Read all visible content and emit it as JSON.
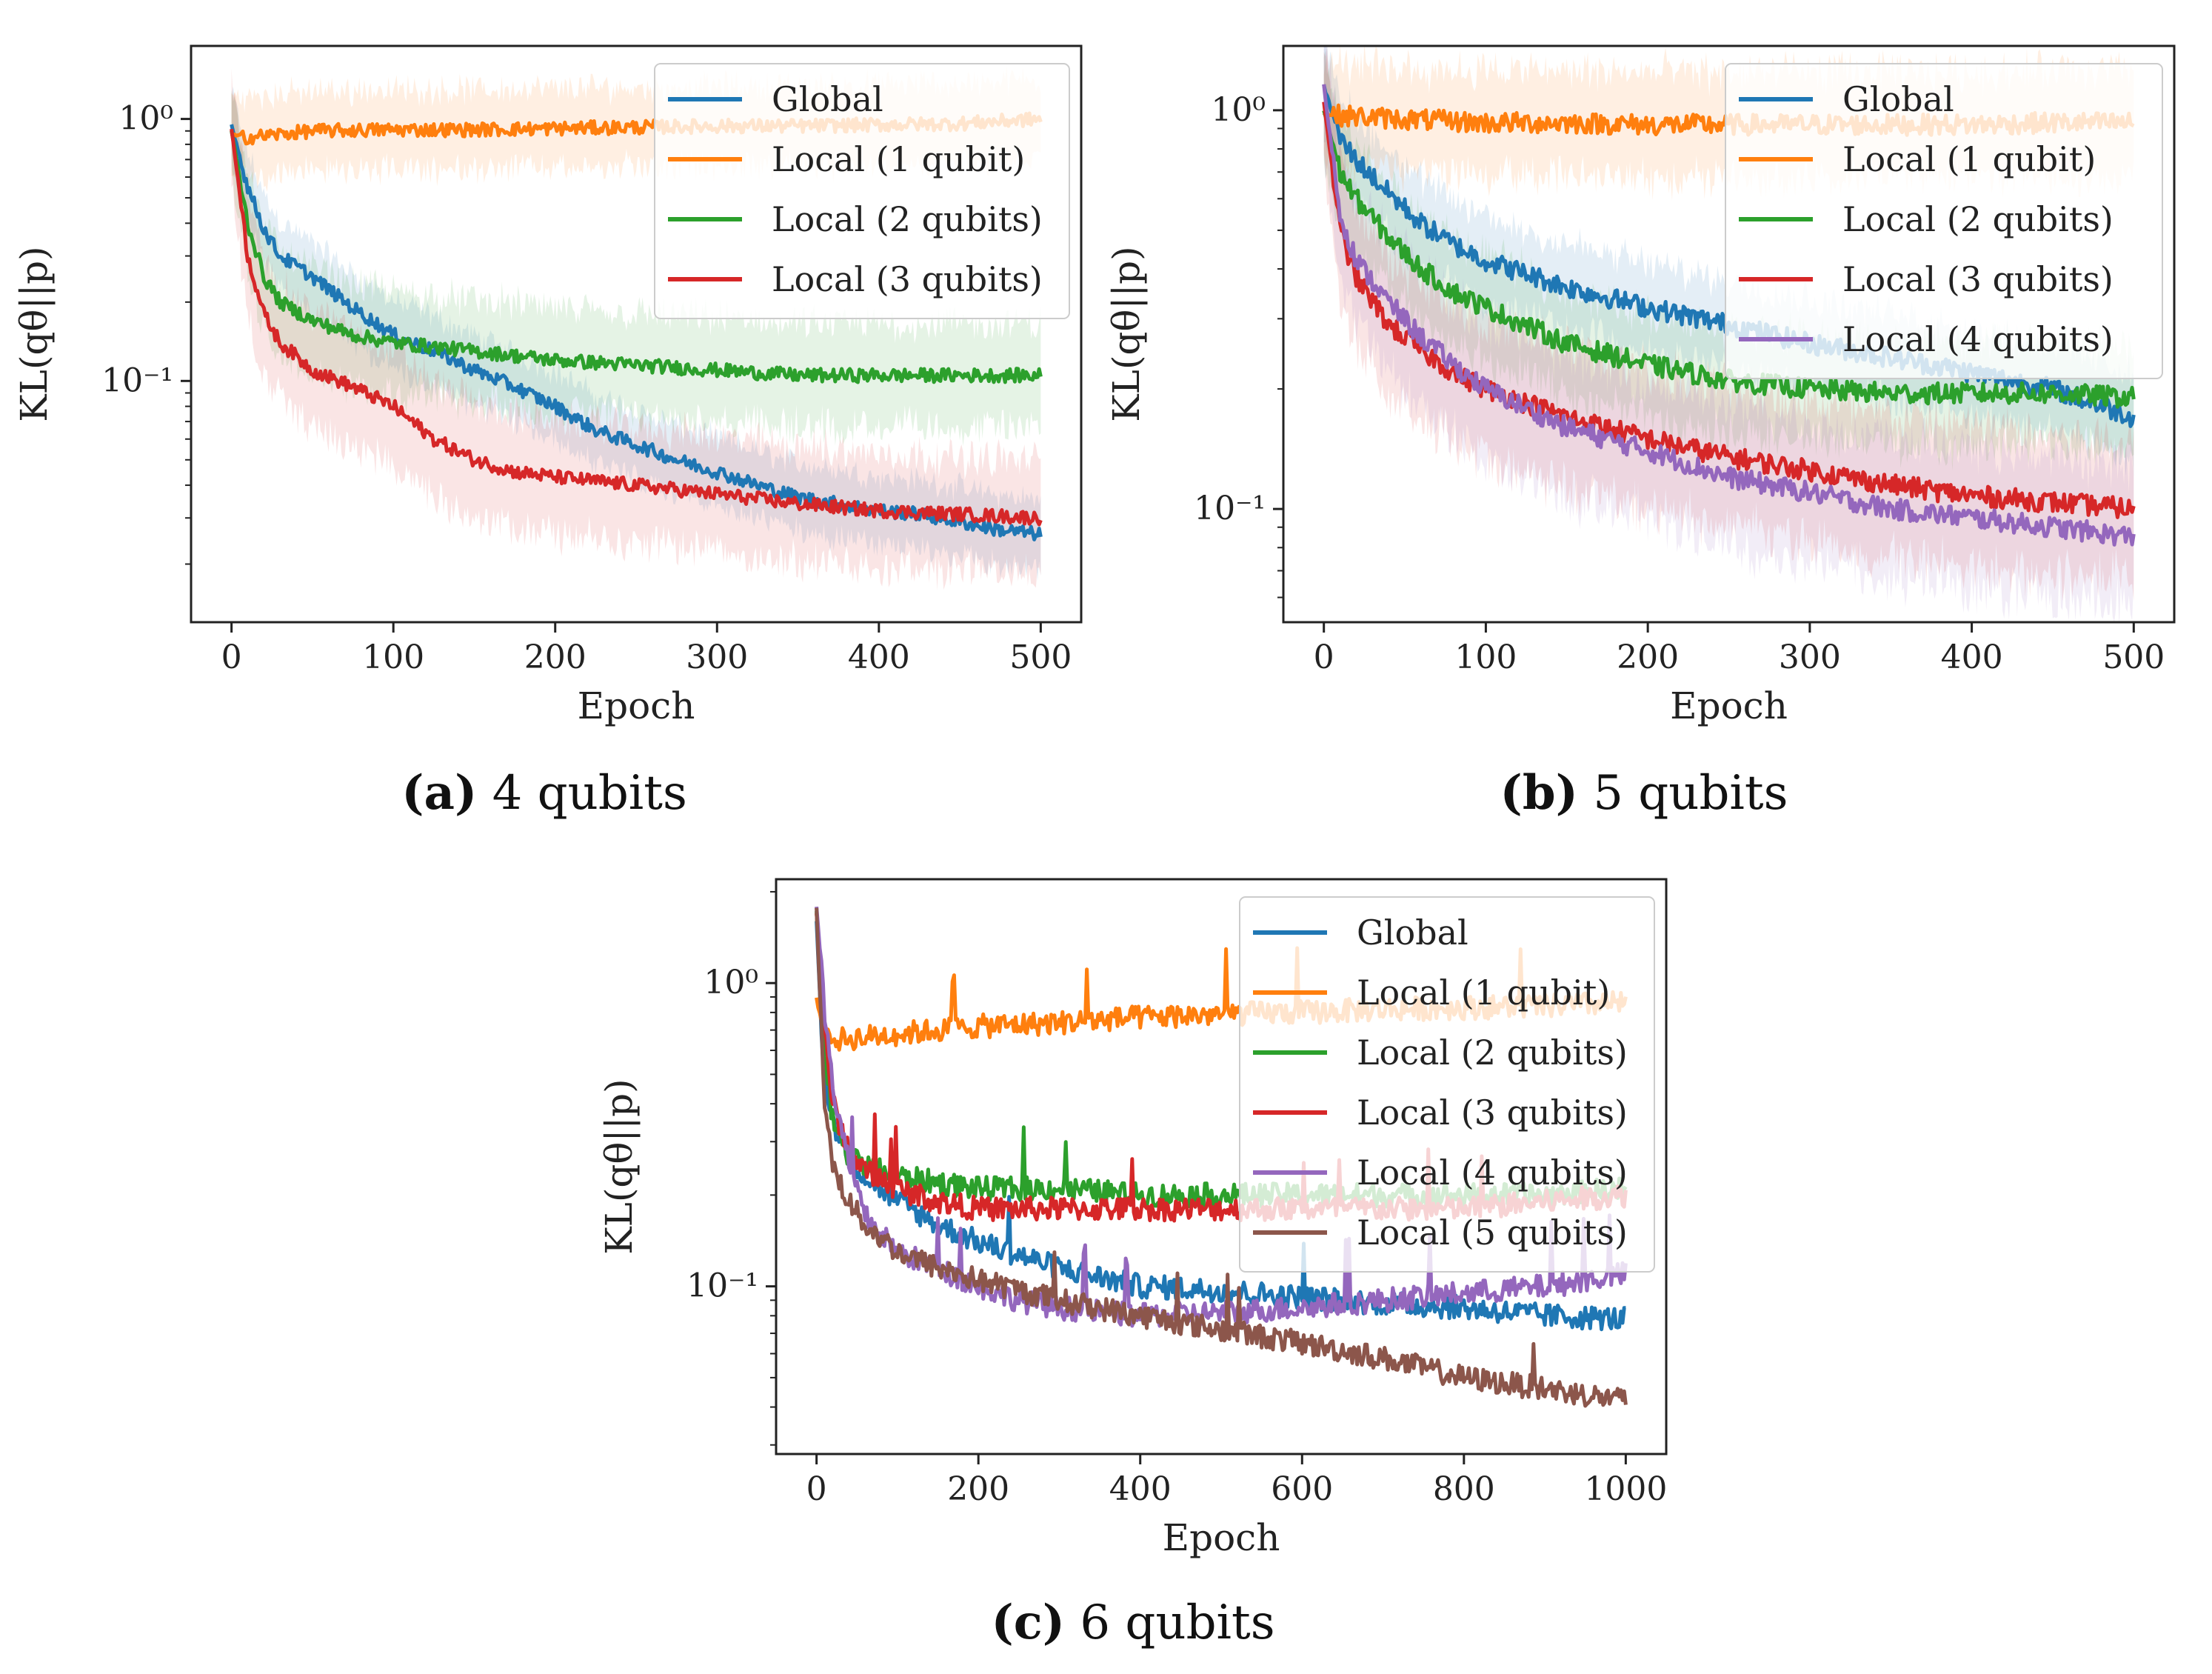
{
  "figure": {
    "colors": {
      "Global": "#1f77b4",
      "Local (1 qubit)": "#ff7f0e",
      "Local (2 qubits)": "#2ca02c",
      "Local (3 qubits)": "#d62728",
      "Local (4 qubits)": "#9467bd",
      "Local (5 qubits)": "#8c564b"
    }
  },
  "chart_data": [
    {
      "id": "a",
      "type": "line",
      "caption_label": "(a)",
      "caption_text": " 4 qubits",
      "xlabel": "Epoch",
      "ylabel": "KL(qθ||p)",
      "yscale": "log",
      "xlim": [
        -25,
        525
      ],
      "ylim": [
        0.012,
        1.9
      ],
      "xticks": [
        0,
        100,
        200,
        300,
        400,
        500
      ],
      "xtick_labels": [
        "0",
        "100",
        "200",
        "300",
        "400",
        "500"
      ],
      "yticks": [
        1,
        0.1
      ],
      "ytick_labels": [
        "10⁰",
        "10⁻¹"
      ],
      "legend_position": "top-right",
      "series": [
        {
          "name": "Global",
          "x": [
            0,
            10,
            20,
            30,
            50,
            75,
            100,
            125,
            150,
            175,
            200,
            225,
            250,
            275,
            300,
            325,
            350,
            375,
            400,
            425,
            450,
            475,
            500
          ],
          "values": [
            0.95,
            0.55,
            0.38,
            0.3,
            0.25,
            0.19,
            0.15,
            0.13,
            0.11,
            0.095,
            0.08,
            0.065,
            0.057,
            0.05,
            0.045,
            0.04,
            0.036,
            0.034,
            0.032,
            0.031,
            0.029,
            0.027,
            0.026
          ],
          "band": 0.3
        },
        {
          "name": "Local (1 qubit)",
          "x": [
            0,
            10,
            50,
            100,
            150,
            200,
            250,
            300,
            350,
            400,
            450,
            500
          ],
          "values": [
            0.87,
            0.85,
            0.9,
            0.91,
            0.91,
            0.92,
            0.93,
            0.94,
            0.94,
            0.95,
            0.96,
            1.0
          ],
          "band": 0.35
        },
        {
          "name": "Local (2 qubits)",
          "x": [
            0,
            10,
            20,
            30,
            50,
            75,
            100,
            150,
            200,
            250,
            300,
            350,
            400,
            450,
            500
          ],
          "values": [
            0.9,
            0.4,
            0.25,
            0.2,
            0.17,
            0.15,
            0.14,
            0.13,
            0.12,
            0.115,
            0.11,
            0.105,
            0.105,
            0.105,
            0.105
          ],
          "band": 0.45
        },
        {
          "name": "Local (3 qubits)",
          "x": [
            0,
            10,
            20,
            30,
            50,
            75,
            100,
            125,
            150,
            175,
            200,
            250,
            300,
            350,
            400,
            450,
            500
          ],
          "values": [
            0.92,
            0.3,
            0.18,
            0.14,
            0.11,
            0.095,
            0.08,
            0.06,
            0.05,
            0.045,
            0.043,
            0.04,
            0.037,
            0.034,
            0.032,
            0.031,
            0.03
          ],
          "band": 0.5
        }
      ]
    },
    {
      "id": "b",
      "type": "line",
      "caption_label": "(b)",
      "caption_text": " 5 qubits",
      "xlabel": "Epoch",
      "ylabel": "KL(qθ||p)",
      "yscale": "log",
      "xlim": [
        -25,
        525
      ],
      "ylim": [
        0.052,
        1.45
      ],
      "xticks": [
        0,
        100,
        200,
        300,
        400,
        500
      ],
      "xtick_labels": [
        "0",
        "100",
        "200",
        "300",
        "400",
        "500"
      ],
      "yticks": [
        1,
        0.1
      ],
      "ytick_labels": [
        "10⁰",
        "10⁻¹"
      ],
      "legend_position": "top-right",
      "series": [
        {
          "name": "Global",
          "x": [
            0,
            10,
            20,
            40,
            60,
            80,
            100,
            150,
            200,
            250,
            300,
            350,
            400,
            450,
            500
          ],
          "values": [
            1.15,
            0.85,
            0.75,
            0.62,
            0.52,
            0.46,
            0.42,
            0.36,
            0.32,
            0.29,
            0.26,
            0.24,
            0.22,
            0.2,
            0.17
          ],
          "band": 0.25
        },
        {
          "name": "Local (1 qubit)",
          "x": [
            0,
            10,
            50,
            100,
            150,
            200,
            250,
            300,
            350,
            400,
            450,
            500
          ],
          "values": [
            0.98,
            0.97,
            0.95,
            0.93,
            0.93,
            0.92,
            0.92,
            0.92,
            0.92,
            0.92,
            0.93,
            0.93
          ],
          "band": 0.3
        },
        {
          "name": "Local (2 qubits)",
          "x": [
            0,
            10,
            20,
            40,
            60,
            80,
            100,
            150,
            200,
            250,
            300,
            350,
            400,
            450,
            500
          ],
          "values": [
            1.0,
            0.7,
            0.6,
            0.48,
            0.4,
            0.35,
            0.32,
            0.26,
            0.23,
            0.21,
            0.2,
            0.195,
            0.195,
            0.195,
            0.19
          ],
          "band": 0.3
        },
        {
          "name": "Local (3 qubits)",
          "x": [
            0,
            10,
            20,
            40,
            60,
            80,
            100,
            150,
            200,
            250,
            300,
            350,
            400,
            450,
            500
          ],
          "values": [
            1.05,
            0.5,
            0.38,
            0.29,
            0.25,
            0.22,
            0.2,
            0.17,
            0.15,
            0.135,
            0.125,
            0.115,
            0.108,
            0.104,
            0.1
          ],
          "band": 0.4
        },
        {
          "name": "Local (4 qubits)",
          "x": [
            0,
            10,
            20,
            40,
            60,
            80,
            100,
            150,
            200,
            250,
            300,
            350,
            400,
            450,
            500
          ],
          "values": [
            1.15,
            0.55,
            0.42,
            0.33,
            0.27,
            0.23,
            0.2,
            0.16,
            0.14,
            0.12,
            0.11,
            0.1,
            0.095,
            0.09,
            0.085
          ],
          "band": 0.4
        }
      ]
    },
    {
      "id": "c",
      "type": "line",
      "caption_label": "(c)",
      "caption_text": " 6 qubits",
      "xlabel": "Epoch",
      "ylabel": "KL(qθ||p)",
      "yscale": "log",
      "xlim": [
        -50,
        1050
      ],
      "ylim": [
        0.028,
        2.2
      ],
      "xticks": [
        0,
        200,
        400,
        600,
        800,
        1000
      ],
      "xtick_labels": [
        "0",
        "200",
        "400",
        "600",
        "800",
        "1000"
      ],
      "yticks": [
        1,
        0.1
      ],
      "ytick_labels": [
        "10⁰",
        "10⁻¹"
      ],
      "legend_position": "top-right",
      "series": [
        {
          "name": "Global",
          "x": [
            0,
            5,
            10,
            20,
            40,
            60,
            100,
            150,
            200,
            300,
            400,
            500,
            600,
            700,
            800,
            900,
            1000
          ],
          "values": [
            1.6,
            0.8,
            0.5,
            0.35,
            0.27,
            0.23,
            0.19,
            0.16,
            0.14,
            0.115,
            0.1,
            0.097,
            0.092,
            0.088,
            0.085,
            0.08,
            0.078
          ],
          "band": 0
        },
        {
          "name": "Local (1 qubit)",
          "x": [
            0,
            10,
            20,
            50,
            100,
            200,
            300,
            400,
            500,
            600,
            700,
            800,
            900,
            1000
          ],
          "values": [
            0.9,
            0.64,
            0.65,
            0.66,
            0.68,
            0.72,
            0.74,
            0.77,
            0.79,
            0.8,
            0.82,
            0.83,
            0.84,
            0.86
          ],
          "band": 0
        },
        {
          "name": "Local (2 qubits)",
          "x": [
            0,
            5,
            10,
            20,
            40,
            60,
            100,
            150,
            200,
            300,
            400,
            500,
            600,
            700,
            800,
            900,
            1000
          ],
          "values": [
            1.7,
            1.0,
            0.6,
            0.35,
            0.27,
            0.25,
            0.23,
            0.22,
            0.21,
            0.21,
            0.2,
            0.2,
            0.2,
            0.2,
            0.2,
            0.2,
            0.21
          ],
          "band": 0
        },
        {
          "name": "Local (3 qubits)",
          "x": [
            0,
            5,
            10,
            20,
            40,
            60,
            100,
            150,
            200,
            300,
            400,
            500,
            600,
            700,
            800,
            900,
            1000
          ],
          "values": [
            1.7,
            1.1,
            0.7,
            0.4,
            0.28,
            0.24,
            0.21,
            0.19,
            0.18,
            0.18,
            0.18,
            0.18,
            0.18,
            0.18,
            0.18,
            0.19,
            0.2
          ],
          "band": 0
        },
        {
          "name": "Local (4 qubits)",
          "x": [
            0,
            5,
            10,
            20,
            40,
            60,
            100,
            150,
            200,
            250,
            300,
            400,
            500,
            600,
            700,
            800,
            900,
            1000
          ],
          "values": [
            1.8,
            1.2,
            0.8,
            0.45,
            0.25,
            0.17,
            0.13,
            0.115,
            0.1,
            0.09,
            0.085,
            0.08,
            0.082,
            0.085,
            0.09,
            0.095,
            0.1,
            0.11
          ],
          "band": 0
        },
        {
          "name": "Local (5 qubits)",
          "x": [
            0,
            5,
            10,
            20,
            40,
            60,
            100,
            150,
            200,
            300,
            400,
            500,
            600,
            700,
            800,
            900,
            1000
          ],
          "values": [
            1.75,
            0.8,
            0.4,
            0.25,
            0.19,
            0.16,
            0.13,
            0.115,
            0.105,
            0.09,
            0.08,
            0.072,
            0.065,
            0.058,
            0.05,
            0.046,
            0.042
          ],
          "band": 0
        }
      ]
    }
  ]
}
